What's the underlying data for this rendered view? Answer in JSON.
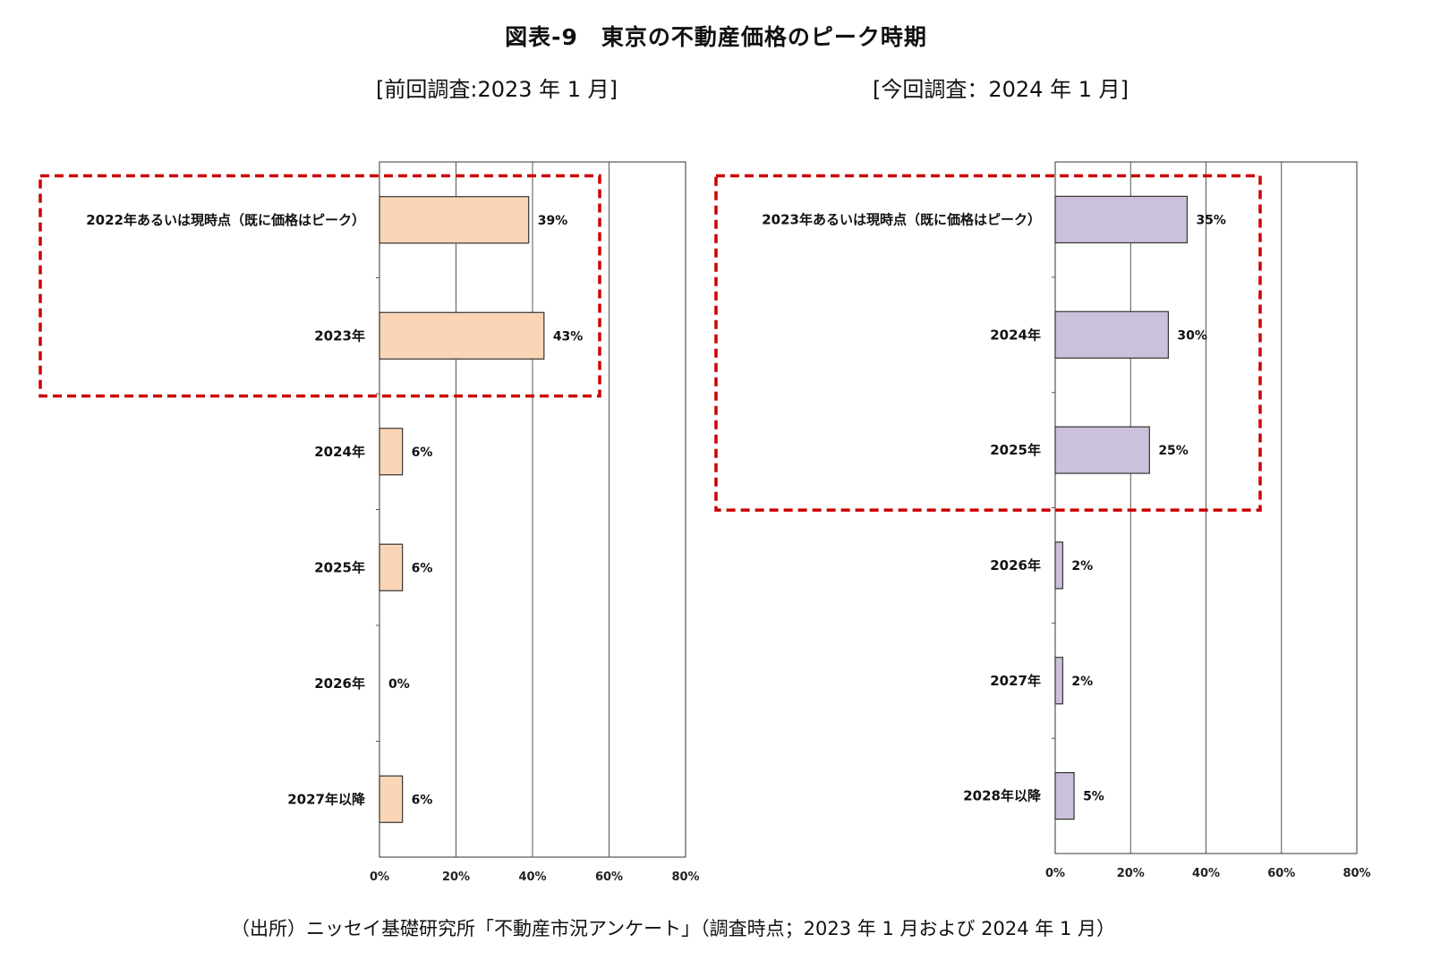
{
  "title": "図表-9　東京の不動産価格のピーク時期",
  "source": "（出所）ニッセイ基礎研究所「不動産市況アンケート」（調査時点；2023 年 1 月および 2024 年 1 月）",
  "colors": {
    "left_bar": "#fbd5b5",
    "right_bar": "#ccc1da",
    "highlight": "#cc0000",
    "bar_stroke": "#333333"
  },
  "chart_data": [
    {
      "type": "bar",
      "orientation": "horizontal",
      "title": "[前回調査:2023 年 1 月]",
      "categories": [
        "2022年あるいは現時点（既に価格はピーク）",
        "2023年",
        "2024年",
        "2025年",
        "2026年",
        "2027年以降"
      ],
      "values": [
        39,
        43,
        6,
        6,
        0,
        6
      ],
      "value_labels": [
        "39%",
        "43%",
        "6%",
        "6%",
        "0%",
        "6%"
      ],
      "xlim": [
        0,
        80
      ],
      "xticks": [
        "0%",
        "20%",
        "40%",
        "60%",
        "80%"
      ],
      "highlighted_categories": [
        "2022年あるいは現時点（既に価格はピーク）",
        "2023年"
      ]
    },
    {
      "type": "bar",
      "orientation": "horizontal",
      "title": "[今回調査：2024 年 1 月]",
      "categories": [
        "2023年あるいは現時点（既に価格はピーク）",
        "2024年",
        "2025年",
        "2026年",
        "2027年",
        "2028年以降"
      ],
      "values": [
        35,
        30,
        25,
        2,
        2,
        5
      ],
      "value_labels": [
        "35%",
        "30%",
        "25%",
        "2%",
        "2%",
        "5%"
      ],
      "xlim": [
        0,
        80
      ],
      "xticks": [
        "0%",
        "20%",
        "40%",
        "60%",
        "80%"
      ],
      "highlighted_categories": [
        "2023年あるいは現時点（既に価格はピーク）",
        "2024年",
        "2025年"
      ]
    }
  ]
}
